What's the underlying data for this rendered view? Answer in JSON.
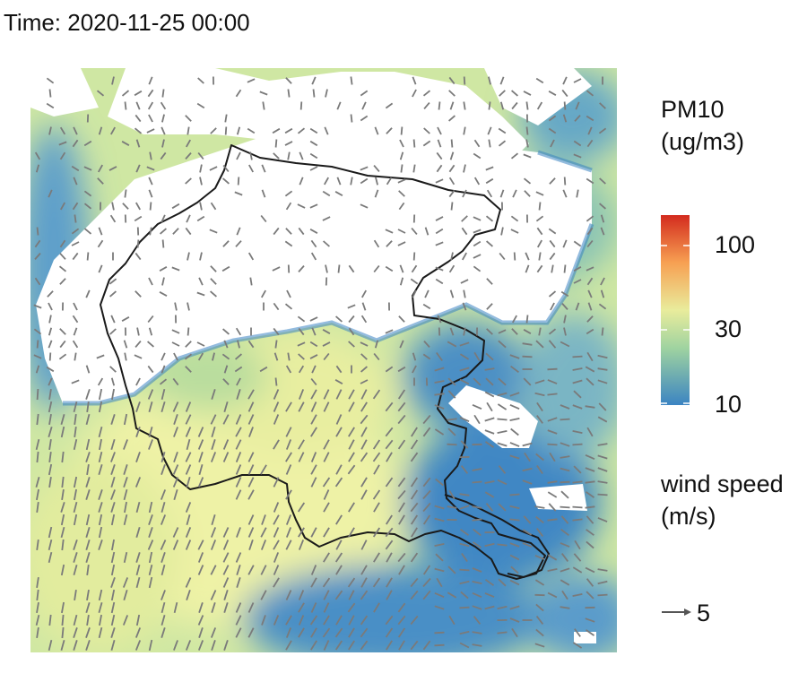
{
  "title": "Time: 2020-11-25 00:00",
  "legend": {
    "pm10_title_line1": "PM10",
    "pm10_title_line2": "(ug/m3)",
    "ticks": [
      "100",
      "30",
      "10"
    ],
    "wind_title_line1": "wind speed",
    "wind_title_line2": "(m/s)",
    "wind_key_value": "5"
  },
  "colors": {
    "low": "#3b84c2",
    "mid": "#e9ec9c",
    "high": "#d32b1e",
    "arrow": "#7a7a7a",
    "boundary": "#1a1a1a"
  },
  "map_data": {
    "variable": "PM10",
    "units": "ug/m3",
    "scale": "log",
    "range": [
      10,
      150
    ],
    "missing_shown_as": "white",
    "overlay": "wind vectors"
  }
}
